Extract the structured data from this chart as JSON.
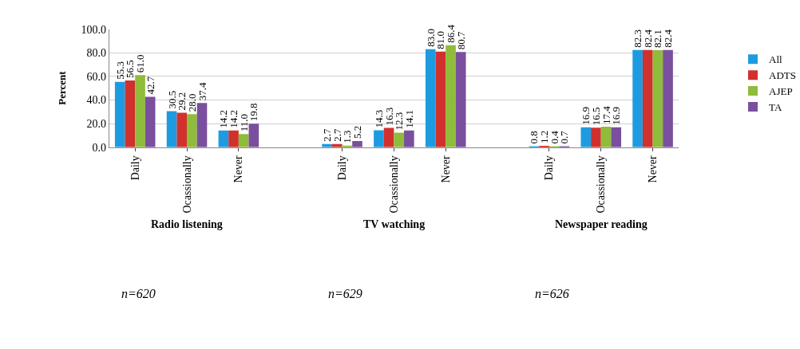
{
  "chart_data": {
    "type": "bar",
    "ylabel": "Percent",
    "categories": [
      "Daily",
      "Ocassionally",
      "Never",
      null,
      "Daily",
      "Ocassionally",
      "Never",
      null,
      "Daily",
      "Ocassionally",
      "Never"
    ],
    "series": [
      {
        "name": "All",
        "color": "#1e9be0",
        "values": [
          55.3,
          30.5,
          14.2,
          null,
          2.7,
          14.3,
          83.0,
          null,
          0.8,
          16.9,
          82.3
        ],
        "value_labels": [
          "55.3",
          "30.5",
          "14.2",
          null,
          "2.7",
          "14.3",
          "83.0",
          null,
          "0.8",
          "16.9",
          "82.3"
        ]
      },
      {
        "name": "ADTS",
        "color": "#d0312d",
        "values": [
          56.5,
          29.2,
          14.2,
          null,
          2.7,
          16.3,
          81.0,
          null,
          1.2,
          16.5,
          82.4
        ],
        "value_labels": [
          "56.5",
          "29.2",
          "14.2",
          null,
          "2.7",
          "16.3",
          "81.0",
          null,
          "1.2",
          "16.5",
          "82.4"
        ]
      },
      {
        "name": "AJEP",
        "color": "#8fbc3a",
        "values": [
          61.0,
          28.0,
          11.0,
          null,
          1.3,
          12.3,
          86.4,
          null,
          0.4,
          17.4,
          82.1
        ],
        "value_labels": [
          "61.0",
          "28.0",
          "11.0",
          null,
          "1.3",
          "12.3",
          "86.4",
          null,
          "0.4",
          "17.4",
          "82.1"
        ]
      },
      {
        "name": "TA",
        "color": "#7a4f9e",
        "values": [
          42.7,
          37.4,
          19.8,
          null,
          5.2,
          14.1,
          80.7,
          null,
          0.7,
          16.9,
          82.4
        ],
        "value_labels": [
          "42.7",
          "37.4",
          "19.8",
          null,
          "5.2",
          "14.1",
          "80.7",
          null,
          "0.7",
          "16.9",
          "82.4"
        ]
      }
    ],
    "ylim": [
      0,
      100
    ],
    "yticks": [
      {
        "value": 0,
        "label": "0.0"
      },
      {
        "value": 20,
        "label": "20.0"
      },
      {
        "value": 40,
        "label": "40.0"
      },
      {
        "value": 60,
        "label": "60.0"
      },
      {
        "value": 80,
        "label": "80.0"
      },
      {
        "value": 100,
        "label": "100.0"
      }
    ],
    "grid": "y",
    "legend": "right",
    "annotations": [
      "Radio listening",
      "TV watching",
      "Newspaper reading",
      "n=620",
      "n=629",
      "n=626"
    ]
  }
}
